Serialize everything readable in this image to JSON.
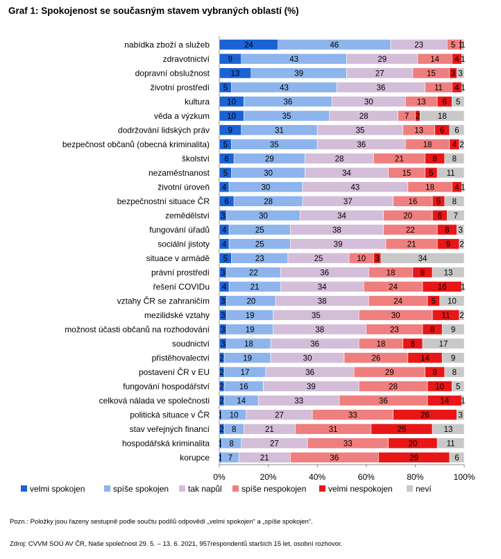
{
  "page": {
    "title": "Graf 1: Spokojenost se současným stavem vybraných oblastí (%)",
    "note": "Pozn.: Položky jsou řazeny sestupně podle součtu podílů odpovědí „velmi spokojen“ a „spíše spokojen“.",
    "source": "Zdroj: CVVM SOÚ AV ČR, Naše společnost 29. 5. – 13. 6. 2021, 957respondentů starších 15 let, osobní rozhovor."
  },
  "chart_data": {
    "type": "bar",
    "orientation": "horizontal",
    "stacked": "100%",
    "title": "Graf 1: Spokojenost se současným stavem vybraných oblastí (%)",
    "categories": [
      "nabídka zboží a služeb",
      "zdravotnictví",
      "dopravní obslužnost",
      "životní prostředí",
      "kultura",
      "věda a výzkum",
      "dodržování lidských práv",
      "bezpečnost občanů (obecná kriminalita)",
      "školství",
      "nezaměstnanost",
      "životní úroveň",
      "bezpečnostní situace ČR",
      "zemědělství",
      "fungování úřadů",
      "sociální jistoty",
      "situace v armádě",
      "právní prostředí",
      "řešení COVIDu",
      "vztahy ČR se zahraničím",
      "mezilidské vztahy",
      "možnost účasti občanů na rozhodování",
      "soudnictví",
      "přistěhovalectví",
      "postavení ČR v EU",
      "fungování hospodářství",
      "celková nálada ve společnosti",
      "politická situace v ČR",
      "stav veřejných financí",
      "hospodářská kriminalita",
      "korupce"
    ],
    "series": [
      {
        "name": "velmi spokojen",
        "color": "#1b62d4",
        "values": [
          24,
          9,
          13,
          5,
          10,
          10,
          9,
          5,
          6,
          5,
          4,
          6,
          3,
          4,
          4,
          5,
          3,
          4,
          3,
          3,
          3,
          3,
          2,
          2,
          2,
          2,
          1,
          2,
          1,
          1
        ]
      },
      {
        "name": "spíše spokojen",
        "color": "#8db4ec",
        "values": [
          46,
          43,
          39,
          43,
          36,
          35,
          31,
          35,
          29,
          30,
          30,
          28,
          30,
          25,
          25,
          23,
          22,
          21,
          20,
          19,
          19,
          18,
          19,
          17,
          16,
          14,
          10,
          8,
          8,
          7
        ]
      },
      {
        "name": "tak napůl",
        "color": "#d3bdd8",
        "values": [
          23,
          29,
          27,
          36,
          30,
          28,
          35,
          36,
          28,
          34,
          43,
          37,
          34,
          38,
          39,
          25,
          36,
          34,
          38,
          35,
          38,
          36,
          30,
          36,
          39,
          33,
          27,
          21,
          27,
          21
        ]
      },
      {
        "name": "spíše nespokojen",
        "color": "#ef7e7e",
        "values": [
          5,
          14,
          15,
          11,
          13,
          7,
          13,
          18,
          21,
          15,
          18,
          16,
          20,
          22,
          21,
          10,
          18,
          24,
          24,
          30,
          23,
          18,
          26,
          29,
          28,
          36,
          33,
          31,
          33,
          36
        ]
      },
      {
        "name": "velmi nespokojen",
        "color": "#e81616",
        "values": [
          1,
          4,
          3,
          4,
          6,
          2,
          6,
          4,
          8,
          5,
          4,
          5,
          6,
          8,
          9,
          3,
          8,
          16,
          5,
          11,
          8,
          8,
          14,
          8,
          10,
          14,
          26,
          25,
          20,
          29
        ]
      },
      {
        "name": "neví",
        "color": "#c8c8c8",
        "values": [
          1,
          1,
          3,
          1,
          5,
          18,
          6,
          2,
          8,
          11,
          1,
          8,
          7,
          3,
          2,
          34,
          13,
          1,
          10,
          2,
          9,
          17,
          9,
          8,
          5,
          1,
          3,
          13,
          11,
          6
        ]
      }
    ],
    "xlim": [
      0,
      100
    ],
    "xticks": [
      "0%",
      "20%",
      "40%",
      "60%",
      "80%",
      "100%"
    ],
    "legend_position": "bottom",
    "grid": false
  }
}
